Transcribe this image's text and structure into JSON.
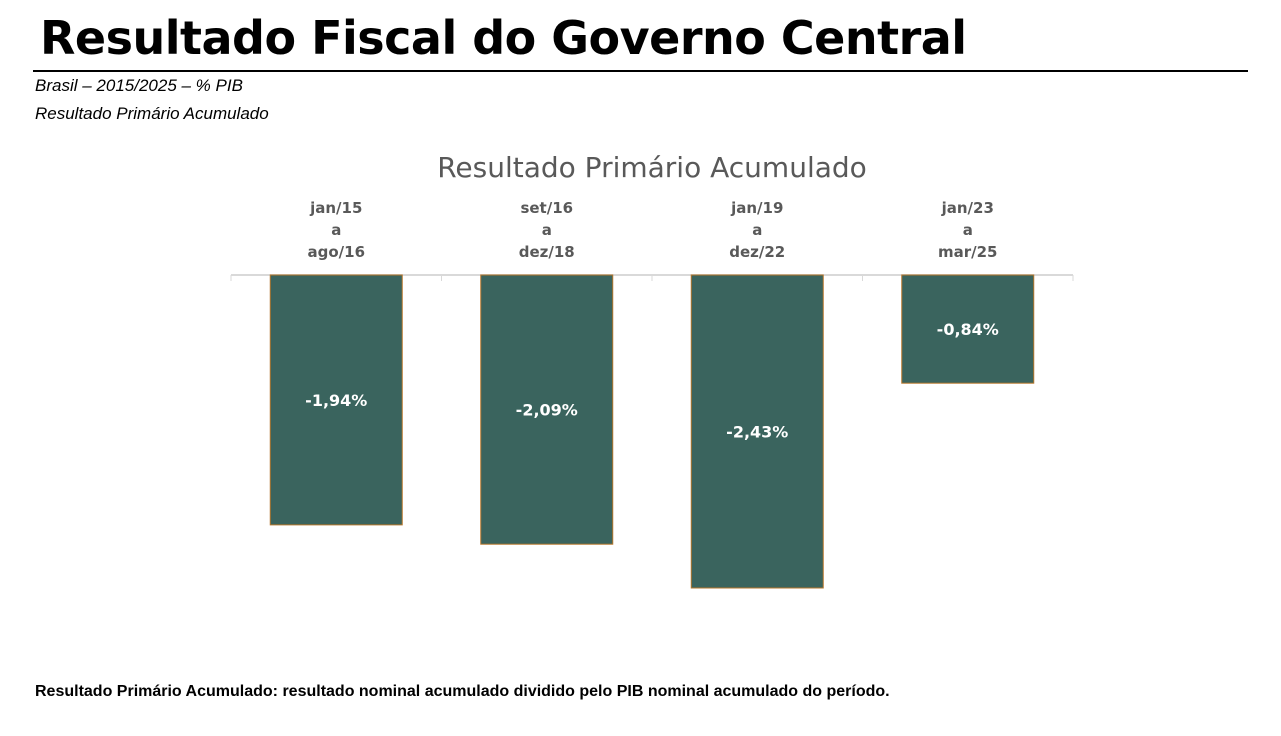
{
  "header": {
    "title": "Resultado Fiscal do Governo Central",
    "subtitle_1": "Brasil – 2015/2025 – % PIB",
    "subtitle_2": "Resultado Primário Acumulado"
  },
  "footnote": "Resultado Primário Acumulado: resultado nominal acumulado dividido pelo PIB nominal acumulado do período.",
  "colors": {
    "bar_fill": "#3a645e",
    "bar_stroke": "#b5762b",
    "axis": "#d9d9d9"
  },
  "chart_data": {
    "type": "bar",
    "title": "Resultado Primário Acumulado",
    "categories": [
      [
        "jan/15",
        "a",
        "ago/16"
      ],
      [
        "set/16",
        "a",
        "dez/18"
      ],
      [
        "jan/19",
        "a",
        "dez/22"
      ],
      [
        "jan/23",
        "a",
        "mar/25"
      ]
    ],
    "values": [
      -1.94,
      -2.09,
      -2.43,
      -0.84
    ],
    "data_labels": [
      "-1,94%",
      "-2,09%",
      "-2,43%",
      "-0,84%"
    ],
    "unit": "% PIB",
    "xlabel": "",
    "ylabel": "",
    "ylim": [
      -2.43,
      0
    ],
    "category_axis_position": "top",
    "grid": false,
    "legend": "none"
  }
}
